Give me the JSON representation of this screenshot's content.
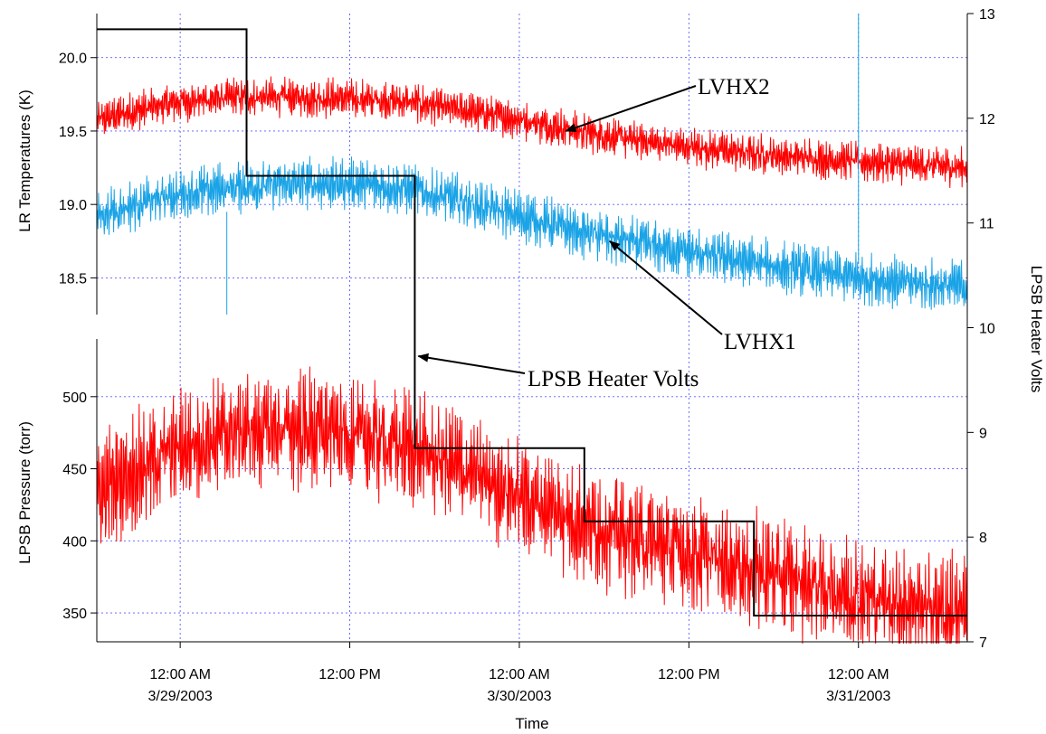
{
  "chart_data": {
    "type": "line",
    "xlabel": "Time",
    "x_ticks": [
      {
        "t": 0,
        "line1": "12:00 AM",
        "line2": "3/29/2003"
      },
      {
        "t": 12,
        "line1": "12:00 PM",
        "line2": ""
      },
      {
        "t": 24,
        "line1": "12:00 AM",
        "line2": "3/30/2003"
      },
      {
        "t": 36,
        "line1": "12:00 PM",
        "line2": ""
      },
      {
        "t": 48,
        "line1": "12:00 AM",
        "line2": "3/31/2003"
      }
    ],
    "x_range_hours_from_3_29_midnight": [
      -5.9,
      55.7
    ],
    "panels": [
      {
        "name": "temperatures",
        "ylabel": "LR Temperatures (K)",
        "ylim": [
          18.25,
          20.3
        ],
        "yticks": [
          18.5,
          19.0,
          19.5,
          20.0
        ],
        "ytick_labels": [
          "18.5",
          "19.0",
          "19.5",
          "20.0"
        ]
      },
      {
        "name": "pressure",
        "ylabel": "LPSB Pressure (torr)",
        "ylim": [
          330,
          540
        ],
        "yticks": [
          350,
          400,
          450,
          500
        ],
        "ytick_labels": [
          "350",
          "400",
          "450",
          "500"
        ]
      }
    ],
    "right_axis": {
      "ylabel": "LPSB Heater Volts",
      "ylim": [
        7,
        13
      ],
      "yticks": [
        7,
        8,
        9,
        10,
        11,
        12,
        13
      ],
      "ytick_labels": [
        "7",
        "8",
        "9",
        "10",
        "11",
        "12",
        "13"
      ]
    },
    "series": [
      {
        "name": "LVHX2",
        "panel": "temperatures",
        "color": "#ff0000",
        "x": [
          -5.9,
          -4,
          0,
          4,
          8,
          12,
          16,
          20,
          24,
          28,
          32,
          36,
          40,
          44,
          48,
          52,
          55.7
        ],
        "y": [
          19.57,
          19.62,
          19.7,
          19.73,
          19.73,
          19.72,
          19.7,
          19.64,
          19.58,
          19.5,
          19.44,
          19.39,
          19.35,
          19.32,
          19.29,
          19.27,
          19.25
        ],
        "oscillation_amplitude": 0.13
      },
      {
        "name": "LVHX1",
        "panel": "temperatures",
        "color": "#1aa3e6",
        "x": [
          -5.9,
          -4,
          0,
          4,
          8,
          12,
          16,
          20,
          24,
          28,
          32,
          36,
          40,
          44,
          48,
          52,
          55.7
        ],
        "y": [
          18.92,
          18.98,
          19.07,
          19.12,
          19.14,
          19.14,
          19.11,
          19.02,
          18.92,
          18.82,
          18.74,
          18.67,
          18.61,
          18.55,
          18.5,
          18.46,
          18.44
        ],
        "oscillation_amplitude": 0.17
      },
      {
        "name": "LPSB Pressure",
        "panel": "pressure",
        "color": "#ff0000",
        "x": [
          -5.9,
          -4,
          0,
          4,
          8,
          12,
          16,
          20,
          24,
          28,
          32,
          36,
          40,
          44,
          48,
          52,
          55.7
        ],
        "y": [
          430,
          445,
          465,
          475,
          478,
          474,
          465,
          450,
          432,
          415,
          402,
          392,
          382,
          372,
          362,
          355,
          350
        ],
        "oscillation_amplitude": 40
      },
      {
        "name": "LPSB Heater Volts",
        "panel": "right",
        "color": "#000000",
        "type": "step",
        "x": [
          -5.9,
          4.7,
          4.7,
          16.6,
          16.6,
          28.6,
          28.6,
          40.6,
          40.6,
          55.7
        ],
        "y": [
          12.85,
          12.85,
          11.45,
          11.45,
          8.85,
          8.85,
          8.15,
          8.15,
          7.25,
          7.25
        ]
      }
    ],
    "annotations": [
      {
        "text": "LVHX2",
        "points_to": "LVHX2",
        "at_x": 27.3
      },
      {
        "text": "LVHX1",
        "points_to": "LVHX1",
        "at_x": 30.4
      },
      {
        "text": "LPSB Heater Volts",
        "points_to": "LPSB Heater Volts",
        "at_x": 16.6
      }
    ]
  }
}
